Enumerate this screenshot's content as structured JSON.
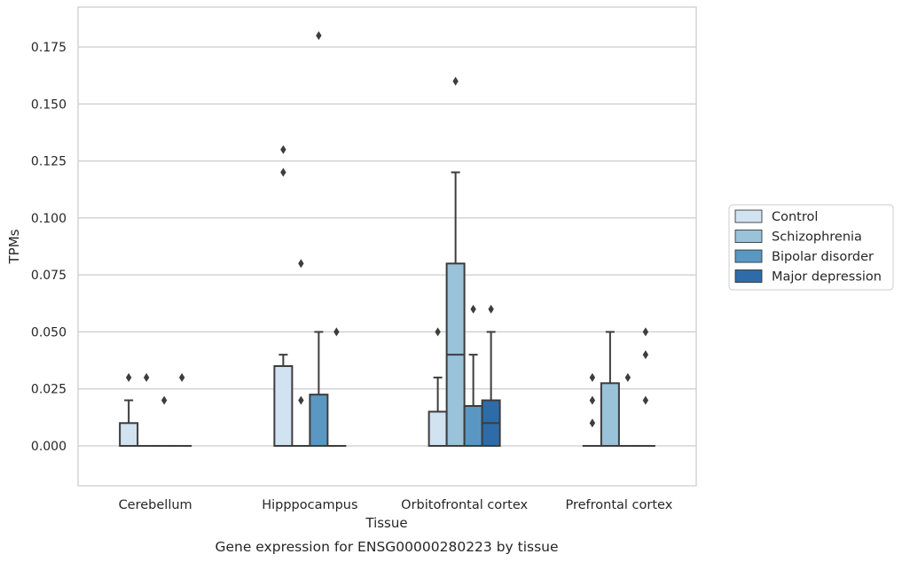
{
  "chart_data": {
    "type": "box",
    "caption": "Gene expression for ENSG00000280223 by tissue",
    "xlabel": "Tissue",
    "ylabel": "TPMs",
    "ylim": [
      -0.0175,
      0.1925
    ],
    "yticks": [
      0.0,
      0.025,
      0.05,
      0.075,
      0.1,
      0.125,
      0.15,
      0.175
    ],
    "ytick_labels": [
      "0.000",
      "0.025",
      "0.050",
      "0.075",
      "0.100",
      "0.125",
      "0.150",
      "0.175"
    ],
    "grid": true,
    "legend_position": "right",
    "categories": [
      "Cerebellum",
      "Hipppocampus",
      "Orbitofrontal cortex",
      "Prefrontal cortex"
    ],
    "series": [
      {
        "name": "Control",
        "color": "#d1e2f1",
        "boxes": [
          {
            "q1": 0.0,
            "median": 0.0,
            "q3": 0.01,
            "whisker_low": 0.0,
            "whisker_high": 0.02,
            "outliers": [
              0.03
            ]
          },
          {
            "q1": 0.0,
            "median": 0.0,
            "q3": 0.035,
            "whisker_low": 0.0,
            "whisker_high": 0.04,
            "outliers": [
              0.12,
              0.13
            ]
          },
          {
            "q1": 0.0,
            "median": 0.0,
            "q3": 0.015,
            "whisker_low": 0.0,
            "whisker_high": 0.03,
            "outliers": [
              0.05
            ]
          },
          {
            "q1": 0.0,
            "median": 0.0,
            "q3": 0.0,
            "whisker_low": 0.0,
            "whisker_high": 0.0,
            "outliers": [
              0.01,
              0.02,
              0.03
            ]
          }
        ]
      },
      {
        "name": "Schizophrenia",
        "color": "#9ac2d9",
        "boxes": [
          {
            "q1": 0.0,
            "median": 0.0,
            "q3": 0.0,
            "whisker_low": 0.0,
            "whisker_high": 0.0,
            "outliers": [
              0.03
            ]
          },
          {
            "q1": 0.0,
            "median": 0.0,
            "q3": 0.0,
            "whisker_low": 0.0,
            "whisker_high": 0.0,
            "outliers": [
              0.02,
              0.08
            ]
          },
          {
            "q1": 0.0,
            "median": 0.04,
            "q3": 0.08,
            "whisker_low": 0.0,
            "whisker_high": 0.12,
            "outliers": [
              0.16
            ]
          },
          {
            "q1": 0.0,
            "median": 0.0,
            "q3": 0.0275,
            "whisker_low": 0.0,
            "whisker_high": 0.05,
            "outliers": []
          }
        ]
      },
      {
        "name": "Bipolar disorder",
        "color": "#5a98c3",
        "boxes": [
          {
            "q1": 0.0,
            "median": 0.0,
            "q3": 0.0,
            "whisker_low": 0.0,
            "whisker_high": 0.0,
            "outliers": [
              0.02
            ]
          },
          {
            "q1": 0.0,
            "median": 0.0,
            "q3": 0.0225,
            "whisker_low": 0.0,
            "whisker_high": 0.05,
            "outliers": [
              0.18
            ]
          },
          {
            "q1": 0.0,
            "median": 0.0,
            "q3": 0.0175,
            "whisker_low": 0.0,
            "whisker_high": 0.04,
            "outliers": [
              0.06
            ]
          },
          {
            "q1": 0.0,
            "median": 0.0,
            "q3": 0.0,
            "whisker_low": 0.0,
            "whisker_high": 0.0,
            "outliers": [
              0.03
            ]
          }
        ]
      },
      {
        "name": "Major depression",
        "color": "#2d6ca9",
        "boxes": [
          {
            "q1": 0.0,
            "median": 0.0,
            "q3": 0.0,
            "whisker_low": 0.0,
            "whisker_high": 0.0,
            "outliers": [
              0.03
            ]
          },
          {
            "q1": 0.0,
            "median": 0.0,
            "q3": 0.0,
            "whisker_low": 0.0,
            "whisker_high": 0.0,
            "outliers": [
              0.05
            ]
          },
          {
            "q1": 0.0,
            "median": 0.01,
            "q3": 0.02,
            "whisker_low": 0.0,
            "whisker_high": 0.05,
            "outliers": [
              0.06
            ]
          },
          {
            "q1": 0.0,
            "median": 0.0,
            "q3": 0.0,
            "whisker_low": 0.0,
            "whisker_high": 0.0,
            "outliers": [
              0.02,
              0.04,
              0.05
            ]
          }
        ]
      }
    ]
  }
}
